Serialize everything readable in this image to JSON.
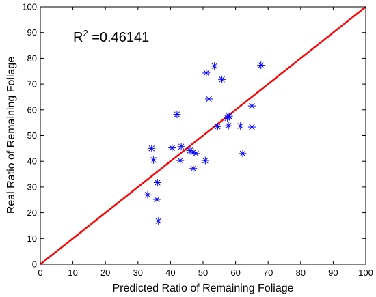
{
  "chart_data": {
    "type": "scatter",
    "xlabel": "Predicted Ratio of Remaining Foliage",
    "ylabel": "Real Ratio of Remaining Foliage",
    "xlim": [
      0,
      100
    ],
    "ylim": [
      0,
      100
    ],
    "xticks": [
      0,
      10,
      20,
      30,
      40,
      50,
      60,
      70,
      80,
      90,
      100
    ],
    "yticks": [
      0,
      10,
      20,
      30,
      40,
      50,
      60,
      70,
      80,
      90,
      100
    ],
    "grid": false,
    "annotation": {
      "text_main": "R",
      "text_sup": "2",
      "text_value": " =0.46141"
    },
    "series": [
      {
        "marker": "asterisk",
        "color": "#0000ff",
        "points": [
          [
            33.0,
            27.0
          ],
          [
            34.2,
            45.0
          ],
          [
            34.8,
            40.5
          ],
          [
            35.8,
            25.2
          ],
          [
            36.0,
            31.7
          ],
          [
            36.3,
            16.8
          ],
          [
            40.5,
            45.2
          ],
          [
            42.0,
            58.2
          ],
          [
            43.0,
            40.3
          ],
          [
            43.3,
            45.7
          ],
          [
            46.0,
            44.2
          ],
          [
            47.0,
            37.2
          ],
          [
            47.0,
            43.5
          ],
          [
            47.8,
            43.0
          ],
          [
            50.7,
            40.3
          ],
          [
            51.0,
            74.3
          ],
          [
            51.8,
            64.2
          ],
          [
            53.5,
            77.0
          ],
          [
            54.5,
            53.5
          ],
          [
            55.8,
            71.8
          ],
          [
            57.5,
            56.8
          ],
          [
            57.8,
            53.8
          ],
          [
            58.0,
            57.5
          ],
          [
            61.5,
            53.7
          ],
          [
            62.2,
            43.0
          ],
          [
            65.0,
            61.5
          ],
          [
            65.0,
            53.3
          ],
          [
            67.8,
            77.3
          ]
        ]
      },
      {
        "type": "line",
        "color": "#ff0000",
        "x": [
          0,
          100
        ],
        "y": [
          0,
          100
        ]
      }
    ]
  }
}
